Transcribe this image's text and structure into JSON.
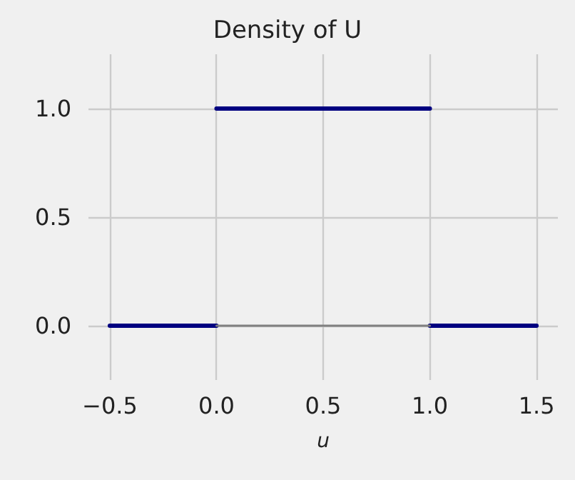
{
  "chart_data": {
    "type": "line",
    "title": "Density of U",
    "xlabel": "u",
    "series": [
      {
        "color": "#000080",
        "x": [
          -0.5,
          0
        ],
        "values": [
          0,
          0
        ]
      },
      {
        "color": "#000080",
        "x": [
          0,
          1
        ],
        "values": [
          1,
          1
        ]
      },
      {
        "color": "#000080",
        "x": [
          1,
          1.5
        ],
        "values": [
          0,
          0
        ]
      },
      {
        "color": "#808080",
        "x": [
          0,
          1
        ],
        "values": [
          0,
          0
        ]
      }
    ],
    "xlim": [
      -0.6,
      1.6
    ],
    "xticks": [
      {
        "value": -0.5,
        "label": "−0.5"
      },
      {
        "value": 0,
        "label": "0.0"
      },
      0.5,
      {
        "value": 1,
        "label": "1.0"
      },
      1.5
    ],
    "ylim": [
      -0.25,
      1.25
    ],
    "yticks": [
      {
        "value": 0,
        "label": "0.0"
      },
      0.5,
      {
        "value": 1,
        "label": "1.0"
      }
    ],
    "grid": true,
    "marker": "none",
    "line_style": "solid"
  }
}
